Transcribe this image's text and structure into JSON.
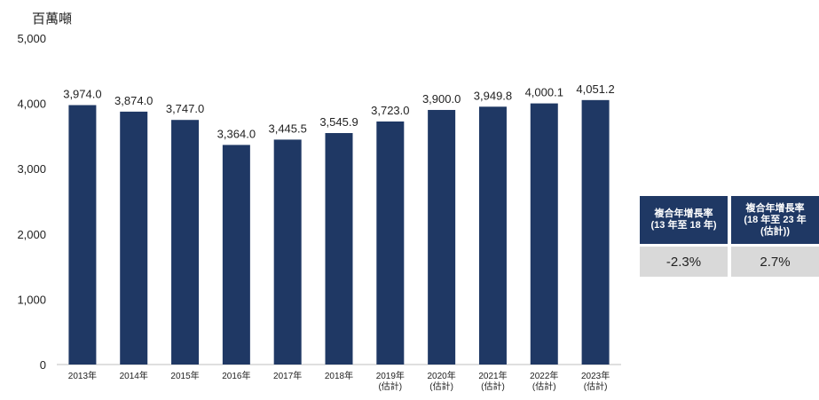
{
  "chart_data": {
    "type": "bar",
    "unit_label": "百萬噸",
    "categories": [
      [
        "2013年"
      ],
      [
        "2014年"
      ],
      [
        "2015年"
      ],
      [
        "2016年"
      ],
      [
        "2017年"
      ],
      [
        "2018年"
      ],
      [
        "2019年",
        "(估計)"
      ],
      [
        "2020年",
        "(估計)"
      ],
      [
        "2021年",
        "(估計)"
      ],
      [
        "2022年",
        "(估計)"
      ],
      [
        "2023年",
        "(估計)"
      ]
    ],
    "values": [
      3974.0,
      3874.0,
      3747.0,
      3364.0,
      3445.5,
      3545.9,
      3723.0,
      3900.0,
      3949.8,
      4000.1,
      4051.2
    ],
    "value_labels": [
      "3,974.0",
      "3,874.0",
      "3,747.0",
      "3,364.0",
      "3,445.5",
      "3,545.9",
      "3,723.0",
      "3,900.0",
      "3,949.8",
      "4,000.1",
      "4,051.2"
    ],
    "yticks": [
      0,
      1000,
      2000,
      3000,
      4000,
      5000
    ],
    "ytick_labels": [
      "0",
      "1,000",
      "2,000",
      "3,000",
      "4,000",
      "5,000"
    ],
    "ylim": [
      0,
      5000
    ],
    "grid": false,
    "bar_color": "#1f3864"
  },
  "cagr_table": {
    "headers": [
      "複合年增長率\n(13 年至 18 年)",
      "複合年增長率\n(18 年至 23 年\n(估計))"
    ],
    "values": [
      "-2.3%",
      "2.7%"
    ],
    "header_bg": "#1f3864",
    "value_bg": "#d9d9d9"
  }
}
